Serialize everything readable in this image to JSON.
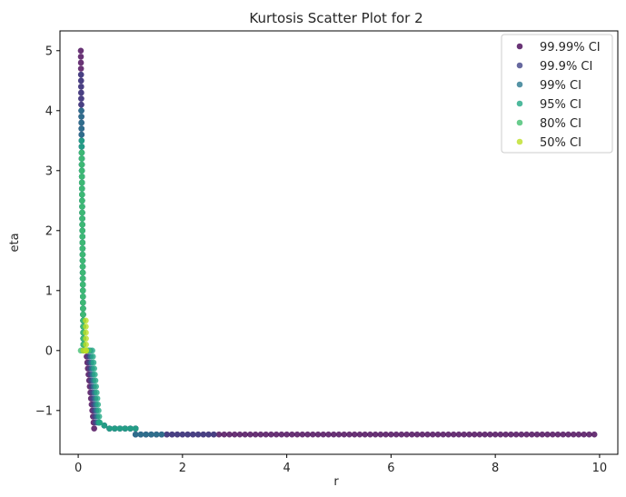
{
  "chart_data": {
    "type": "scatter",
    "title": "Kurtosis Scatter Plot for 2",
    "xlabel": "r",
    "ylabel": "eta",
    "xlim": [
      -0.35,
      10.35
    ],
    "ylim": [
      -1.73,
      5.33
    ],
    "xticks": [
      0,
      2,
      4,
      6,
      8,
      10
    ],
    "yticks": [
      -1,
      0,
      1,
      2,
      3,
      4,
      5
    ],
    "grid": false,
    "legend_position": "top-right",
    "series": [
      {
        "name": "99.99% CI",
        "color": "#440154",
        "eta_max": 5.0,
        "r_min": 0.05,
        "r_tail_max": 9.9,
        "tail_eta": -1.4,
        "step_r": 0.1,
        "step_eta": 0.1
      },
      {
        "name": "99.9% CI",
        "color": "#414487",
        "eta_max": 4.6,
        "r_min": 0.05,
        "r_tail_max": 2.6,
        "tail_eta": -1.4,
        "step_r": 0.1,
        "step_eta": 0.1
      },
      {
        "name": "99% CI",
        "color": "#2a788e",
        "eta_max": 4.0,
        "r_min": 0.05,
        "r_tail_max": 1.6,
        "tail_eta": -1.4,
        "step_r": 0.1,
        "step_eta": 0.1
      },
      {
        "name": "95% CI",
        "color": "#22a884",
        "eta_max": 3.5,
        "r_min": 0.05,
        "r_tail_max": 0.7,
        "tail_eta": -1.4,
        "step_r": 0.1,
        "step_eta": 0.1
      },
      {
        "name": "80% CI",
        "color": "#44bf70",
        "eta_max": 3.3,
        "r_min": 0.05,
        "r_tail_max": 0.2,
        "tail_eta": 0.0,
        "step_r": 0.1,
        "step_eta": 0.1
      },
      {
        "name": "50% CI",
        "color": "#bddf26",
        "eta_max": 0.5,
        "r_min": 0.1,
        "r_tail_max": 0.15,
        "tail_eta": 0.0,
        "step_r": 0.1,
        "step_eta": 0.1
      }
    ]
  }
}
